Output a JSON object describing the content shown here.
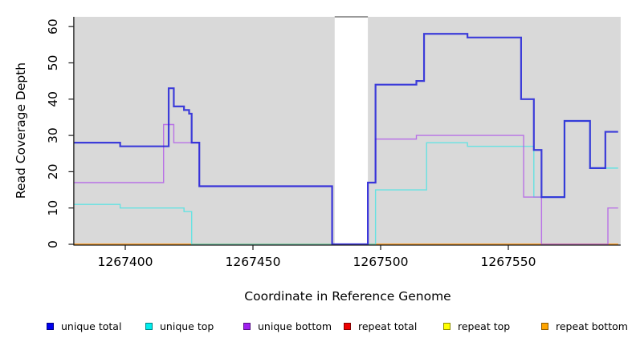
{
  "chart_data": {
    "type": "line",
    "subtype": "step",
    "title": "",
    "xlabel": "Coordinate in Reference Genome",
    "ylabel": "Read Coverage Depth",
    "xlim": [
      1267380,
      1267594
    ],
    "ylim": [
      0,
      63
    ],
    "xticks": [
      1267400,
      1267450,
      1267500,
      1267550
    ],
    "yticks": [
      0,
      10,
      20,
      30,
      40,
      50,
      60
    ],
    "grid": false,
    "legend_position": "bottom",
    "panel_background": "#D9D9D9",
    "outer_background": "#FFFFFF",
    "masked_region": {
      "x_start": 1267482,
      "x_end": 1267495,
      "fill": "#FFFFFF",
      "top_edge_color": "#9A9A9A"
    },
    "layers": {
      "below_mask": [
        "repeat top",
        "repeat total",
        "repeat bottom",
        "unique top"
      ],
      "above_mask": [
        "unique bottom",
        "unique total"
      ]
    },
    "series": [
      {
        "name": "unique total",
        "legend_color": "#0000EE",
        "line_color": "#2A2AD8",
        "line_width": 2.2,
        "opacity": 0.9,
        "steps": [
          [
            1267380,
            28
          ],
          [
            1267398,
            27
          ],
          [
            1267417,
            43
          ],
          [
            1267419,
            38
          ],
          [
            1267423,
            37
          ],
          [
            1267425,
            36
          ],
          [
            1267426,
            28
          ],
          [
            1267429,
            16
          ],
          [
            1267481,
            0
          ],
          [
            1267495,
            17
          ],
          [
            1267498,
            44
          ],
          [
            1267514,
            45
          ],
          [
            1267517,
            58
          ],
          [
            1267534,
            57
          ],
          [
            1267555,
            40
          ],
          [
            1267560,
            26
          ],
          [
            1267563,
            13
          ],
          [
            1267572,
            34
          ],
          [
            1267582,
            21
          ],
          [
            1267588,
            31
          ]
        ]
      },
      {
        "name": "unique top",
        "legend_color": "#00EEEE",
        "line_color": "#49E3E3",
        "line_width": 1.4,
        "opacity": 0.8,
        "steps": [
          [
            1267380,
            11
          ],
          [
            1267398,
            10
          ],
          [
            1267423,
            9
          ],
          [
            1267426,
            0
          ],
          [
            1267498,
            15
          ],
          [
            1267518,
            28
          ],
          [
            1267534,
            27
          ],
          [
            1267560,
            13
          ],
          [
            1267572,
            34
          ],
          [
            1267582,
            21
          ]
        ]
      },
      {
        "name": "unique bottom",
        "legend_color": "#A020F0",
        "line_color": "#B35FE8",
        "line_width": 1.4,
        "opacity": 0.85,
        "steps": [
          [
            1267380,
            17
          ],
          [
            1267415,
            33
          ],
          [
            1267419,
            28
          ],
          [
            1267429,
            16
          ],
          [
            1267481,
            0
          ],
          [
            1267495,
            17
          ],
          [
            1267498,
            29
          ],
          [
            1267514,
            30
          ],
          [
            1267556,
            13
          ],
          [
            1267563,
            0
          ],
          [
            1267589,
            10
          ]
        ]
      },
      {
        "name": "repeat total",
        "legend_color": "#EE0000",
        "line_color": "#E03030",
        "line_width": 1.3,
        "opacity": 1,
        "steps": [
          [
            1267380,
            0
          ]
        ]
      },
      {
        "name": "repeat top",
        "legend_color": "#FFFF00",
        "line_color": "#F0E545",
        "line_width": 1.3,
        "opacity": 1,
        "steps": [
          [
            1267380,
            0
          ]
        ]
      },
      {
        "name": "repeat bottom",
        "legend_color": "#FFA500",
        "line_color": "#FF9E1B",
        "line_width": 1.6,
        "opacity": 1,
        "steps": [
          [
            1267380,
            0
          ]
        ]
      }
    ]
  }
}
